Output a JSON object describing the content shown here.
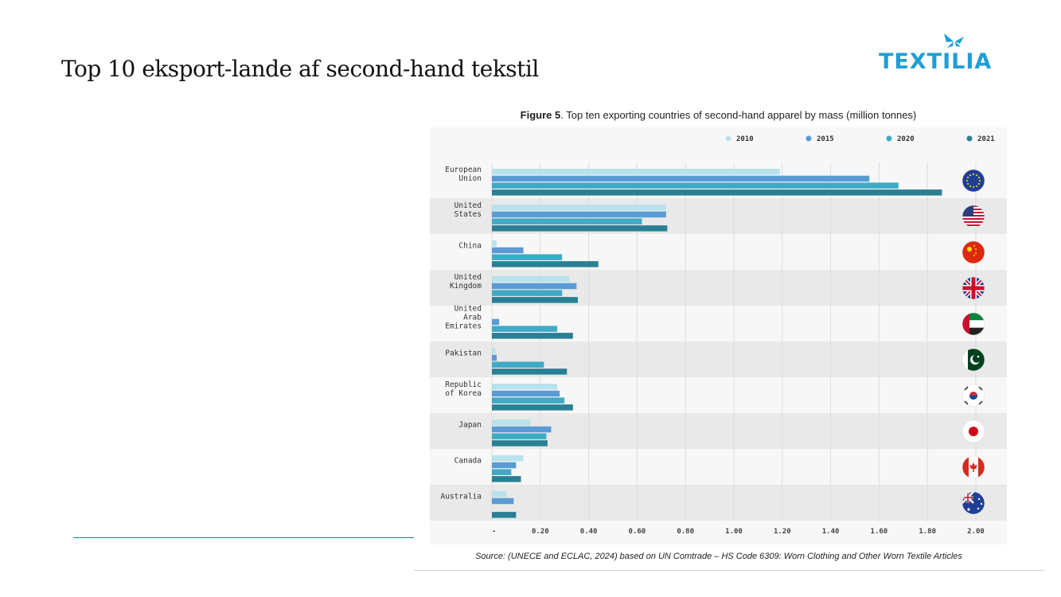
{
  "slide": {
    "title": "Top 10 eksport-lande af second-hand tekstil",
    "logo_text": "TEXTILIA"
  },
  "figure": {
    "caption_bold": "Figure 5",
    "caption_rest": ". Top ten exporting countries of second-hand apparel by mass (million tonnes)",
    "source": "Source: (UNECE and ECLAC, 2024) based on UN Comtrade – HS Code 6309: Worn Clothing and Other Worn Textile Articles"
  },
  "colors": {
    "2010": "#b9e2ec",
    "2015": "#5b9bd5",
    "2020": "#3eabc4",
    "2021": "#2b7f95",
    "band": "#e9e9e9",
    "plot_bg": "#f7f7f7"
  },
  "chart_data": {
    "type": "bar",
    "orientation": "horizontal",
    "categories": [
      [
        "European",
        "Union"
      ],
      [
        "United",
        "States"
      ],
      [
        "China"
      ],
      [
        "United",
        "Kingdom"
      ],
      [
        "United",
        "Arab",
        "Emirates"
      ],
      [
        "Pakistan"
      ],
      [
        "Republic",
        "of Korea"
      ],
      [
        "Japan"
      ],
      [
        "Canada"
      ],
      [
        "Australia"
      ]
    ],
    "series": [
      {
        "name": "2010",
        "values": [
          1.19,
          0.72,
          0.02,
          0.32,
          0.0,
          0.015,
          0.27,
          0.16,
          0.13,
          0.06
        ]
      },
      {
        "name": "2015",
        "values": [
          1.56,
          0.72,
          0.13,
          0.35,
          0.03,
          0.02,
          0.28,
          0.245,
          0.1,
          0.09
        ]
      },
      {
        "name": "2020",
        "values": [
          1.68,
          0.62,
          0.29,
          0.29,
          0.27,
          0.215,
          0.3,
          0.225,
          0.08,
          0.0
        ]
      },
      {
        "name": "2021",
        "values": [
          1.86,
          0.725,
          0.44,
          0.355,
          0.335,
          0.31,
          0.335,
          0.23,
          0.12,
          0.1
        ]
      }
    ],
    "xticks": [
      "-",
      "0.20",
      "0.40",
      "0.60",
      "0.80",
      "1.00",
      "1.20",
      "1.40",
      "1.60",
      "1.80",
      "2.00"
    ],
    "xlim": [
      0,
      2.0
    ],
    "legend_position": "top-right",
    "grid": true,
    "flags": [
      "eu-flag-icon",
      "us-flag-icon",
      "china-flag-icon",
      "uk-flag-icon",
      "uae-flag-icon",
      "pakistan-flag-icon",
      "korea-flag-icon",
      "japan-flag-icon",
      "canada-flag-icon",
      "australia-flag-icon"
    ]
  }
}
